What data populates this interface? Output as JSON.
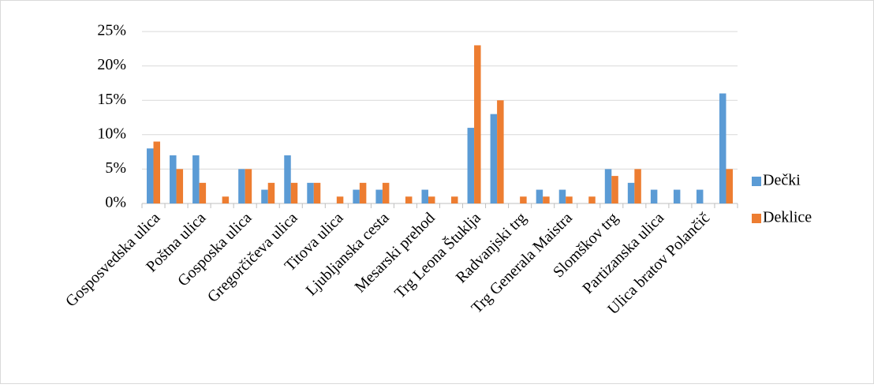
{
  "chart_data": {
    "type": "bar",
    "categories": [
      "Gosposvedska ulica",
      null,
      "Poštna ulica",
      null,
      "Gosposka ulica",
      null,
      "Gregorčičeva ulica",
      null,
      "Titova ulica",
      null,
      "Ljubljanska cesta",
      null,
      "Mesarski prehod",
      null,
      "Trg Leona Štuklja",
      null,
      "Radvanjski trg",
      null,
      "Trg Generala Maistra",
      null,
      "Slomškov trg",
      null,
      "Partizanska ulica",
      null,
      "Ulica bratov Polančič",
      null
    ],
    "series": [
      {
        "name": "Dečki",
        "color": "#5b9bd5",
        "values": [
          8,
          7,
          7,
          0,
          5,
          2,
          7,
          3,
          0,
          2,
          2,
          0,
          2,
          0,
          11,
          13,
          0,
          2,
          2,
          0,
          5,
          3,
          2,
          2,
          2,
          16
        ]
      },
      {
        "name": "Deklice",
        "color": "#ed7d31",
        "values": [
          9,
          5,
          3,
          1,
          5,
          3,
          3,
          3,
          1,
          3,
          3,
          1,
          1,
          1,
          23,
          15,
          1,
          1,
          1,
          1,
          4,
          5,
          0,
          0,
          0,
          5
        ]
      }
    ],
    "ylim": [
      0,
      25
    ],
    "yticks": [
      {
        "value": 0,
        "label": "0%"
      },
      {
        "value": 5,
        "label": "5%"
      },
      {
        "value": 10,
        "label": "10%"
      },
      {
        "value": 15,
        "label": "15%"
      },
      {
        "value": 20,
        "label": "20%"
      },
      {
        "value": 25,
        "label": "25%"
      }
    ],
    "grid": true,
    "legend": "right"
  }
}
